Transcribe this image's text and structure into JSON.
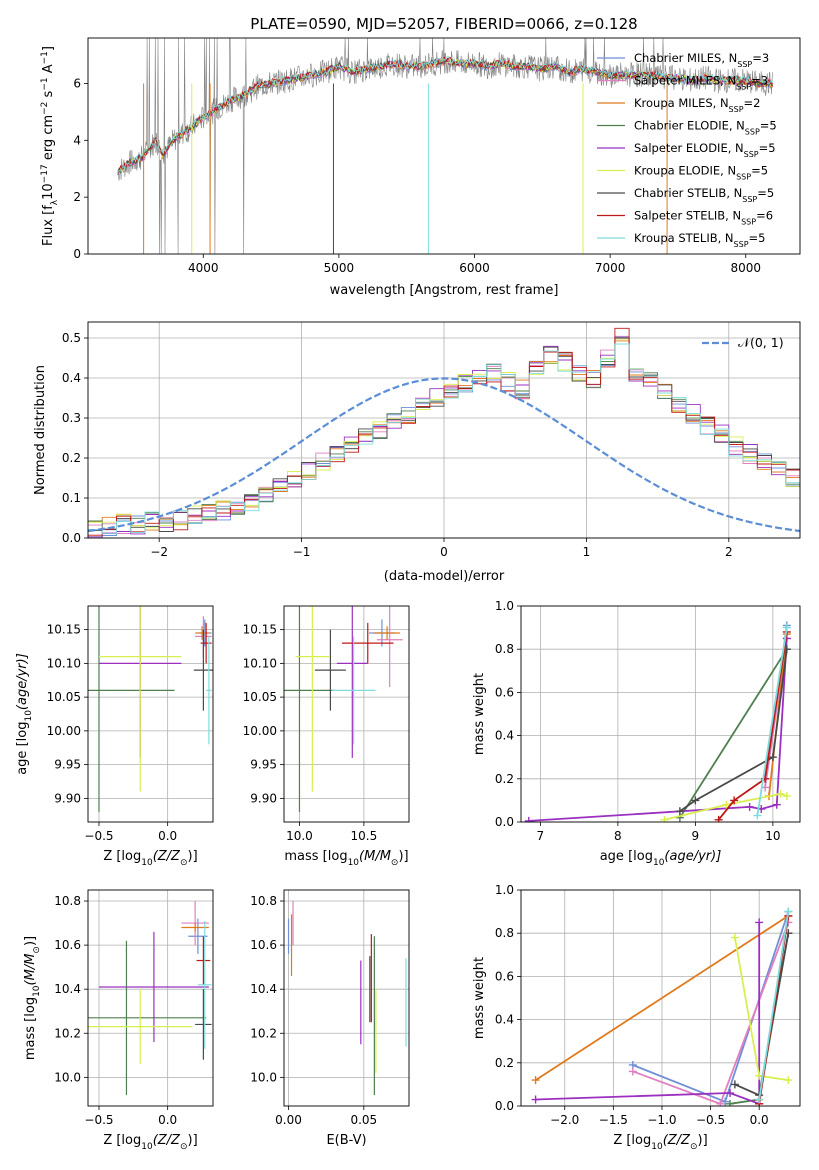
{
  "page": {
    "title": "PLATE=0590, MJD=52057, FIBERID=0066, z=0.128"
  },
  "colors": {
    "Chabrier MILES": "#6f8fd8",
    "Salpeter MILES": "#e07fbf",
    "Kroupa MILES": "#e07a1c",
    "Chabrier ELODIE": "#4f7f4f",
    "Salpeter ELODIE": "#9b30c0",
    "Kroupa ELODIE": "#d8ef4f",
    "Chabrier STELIB": "#4a4a4a",
    "Salpeter STELIB": "#c01818",
    "Kroupa STELIB": "#7fdcdc",
    "gray": "#808080"
  },
  "spectrum_legend": [
    {
      "label": "Chabrier MILES, N",
      "sub": "SSP",
      "suffix": "=3",
      "color": "#6f8fd8"
    },
    {
      "label": "Salpeter MILES, N",
      "sub": "SSP",
      "suffix": "=3",
      "color": "#e07fbf"
    },
    {
      "label": "Kroupa MILES, N",
      "sub": "SSP",
      "suffix": "=2",
      "color": "#e07a1c"
    },
    {
      "label": "Chabrier ELODIE, N",
      "sub": "SSP",
      "suffix": "=5",
      "color": "#4f7f4f"
    },
    {
      "label": "Salpeter ELODIE, N",
      "sub": "SSP",
      "suffix": "=5",
      "color": "#9b30c0"
    },
    {
      "label": "Kroupa ELODIE, N",
      "sub": "SSP",
      "suffix": "=5",
      "color": "#d8ef4f"
    },
    {
      "label": "Chabrier STELIB, N",
      "sub": "SSP",
      "suffix": "=5",
      "color": "#4a4a4a"
    },
    {
      "label": "Salpeter STELIB, N",
      "sub": "SSP",
      "suffix": "=6",
      "color": "#c01818"
    },
    {
      "label": "Kroupa STELIB, N",
      "sub": "SSP",
      "suffix": "=5",
      "color": "#7fdcdc"
    }
  ],
  "chart_data": [
    {
      "id": "spectrum",
      "type": "line",
      "title": "PLATE=0590, MJD=52057, FIBERID=0066, z=0.128",
      "xlabel": "wavelength [Angstrom, rest frame]",
      "ylabel_main": "Flux [f",
      "ylabel_sub": "λ",
      "ylabel_rest": "10",
      "ylabel_exp1": "−17",
      "ylabel_mid": " erg cm",
      "ylabel_exp2": "−2",
      "ylabel_mid2": " s",
      "ylabel_exp3": "−1",
      "ylabel_mid3": " A",
      "ylabel_exp4": "−1",
      "ylabel_end": "]",
      "xlim": [
        3150,
        8400
      ],
      "ylim": [
        0,
        7.6
      ],
      "xticks": [
        "4000",
        "5000",
        "6000",
        "7000",
        "8000"
      ],
      "xtick_vals": [
        4000,
        5000,
        6000,
        7000,
        8000
      ],
      "yticks": [
        "0",
        "2",
        "4",
        "6"
      ],
      "ytick_vals": [
        0,
        2,
        4,
        6
      ],
      "continuum": {
        "x": [
          3370,
          3450,
          3550,
          3650,
          3700,
          3800,
          3900,
          4000,
          4100,
          4200,
          4300,
          4400,
          4500,
          4600,
          4700,
          4800,
          4900,
          5000,
          5100,
          5200,
          5300,
          5400,
          5500,
          5600,
          5700,
          5800,
          5900,
          6000,
          6100,
          6200,
          6300,
          6400,
          6500,
          6600,
          6700,
          6800,
          6900,
          7000,
          7100,
          7200,
          7300,
          7400,
          7500,
          7600,
          7700,
          7800,
          7900,
          8000,
          8100,
          8200
        ],
        "y": [
          2.9,
          3.2,
          3.4,
          4.0,
          3.5,
          4.1,
          4.4,
          4.8,
          5.1,
          5.4,
          5.6,
          5.9,
          6.0,
          6.1,
          6.2,
          6.3,
          6.4,
          6.6,
          6.4,
          6.5,
          6.6,
          6.7,
          6.6,
          6.6,
          6.7,
          6.8,
          6.7,
          6.7,
          6.6,
          6.7,
          6.6,
          6.6,
          6.5,
          6.6,
          6.4,
          6.5,
          6.4,
          6.3,
          6.3,
          6.3,
          6.3,
          6.2,
          6.2,
          6.1,
          6.2,
          6.1,
          6.1,
          6.1,
          6.0,
          6.0
        ]
      }
    },
    {
      "id": "residuals",
      "type": "area",
      "xlabel": "(data-model)/error",
      "ylabel": "Normed distribution",
      "xlim": [
        -2.5,
        2.5
      ],
      "ylim": [
        0,
        0.54
      ],
      "xticks": [
        "−2",
        "−1",
        "0",
        "1",
        "2"
      ],
      "xtick_vals": [
        -2,
        -1,
        0,
        1,
        2
      ],
      "yticks": [
        "0.0",
        "0.1",
        "0.2",
        "0.3",
        "0.4",
        "0.5"
      ],
      "ytick_vals": [
        0,
        0.1,
        0.2,
        0.3,
        0.4,
        0.5
      ],
      "legend": "𝒩(0, 1)",
      "bin_width": 0.1,
      "bin_start": -2.5,
      "values": [
        0.02,
        0.03,
        0.035,
        0.035,
        0.04,
        0.04,
        0.045,
        0.06,
        0.06,
        0.07,
        0.08,
        0.09,
        0.11,
        0.13,
        0.15,
        0.17,
        0.19,
        0.21,
        0.23,
        0.25,
        0.27,
        0.29,
        0.31,
        0.33,
        0.35,
        0.37,
        0.39,
        0.41,
        0.41,
        0.39,
        0.37,
        0.42,
        0.46,
        0.44,
        0.41,
        0.4,
        0.45,
        0.5,
        0.41,
        0.39,
        0.36,
        0.33,
        0.31,
        0.28,
        0.26,
        0.23,
        0.21,
        0.19,
        0.18,
        0.15,
        0.13,
        0.11,
        0.1,
        0.09,
        0.08,
        0.07,
        0.06,
        0.05,
        0.04,
        0.04
      ]
    },
    {
      "id": "age_vs_Z",
      "type": "scatter",
      "xlabel": "Z [log",
      "xlabel_sub": "10",
      "xlabel_rest": "(Z/Z",
      "xlabel_sub2": "⊙",
      "xlabel_end": ")]",
      "ylabel": "age  [log",
      "ylabel_sub": "10",
      "ylabel_rest": "(age/yr)]",
      "xlim": [
        -0.58,
        0.33
      ],
      "ylim": [
        9.865,
        10.185
      ],
      "xticks": [
        "−0.5",
        "0.0"
      ],
      "xtick_vals": [
        -0.5,
        0.0
      ],
      "yticks": [
        "9.90",
        "9.95",
        "10.00",
        "10.05",
        "10.10",
        "10.15"
      ],
      "ytick_vals": [
        9.9,
        9.95,
        10.0,
        10.05,
        10.1,
        10.15
      ],
      "points": [
        {
          "x": 0.27,
          "y": 10.145,
          "xerr": 0.05,
          "yerr": 0.02,
          "color": "#6f8fd8"
        },
        {
          "x": 0.26,
          "y": 10.14,
          "xerr": 0.06,
          "yerr": 0.03,
          "color": "#e07fbf"
        },
        {
          "x": 0.25,
          "y": 10.145,
          "xerr": 0.05,
          "yerr": 0.01,
          "color": "#e07a1c"
        },
        {
          "x": -0.5,
          "y": 10.06,
          "xerr": 0.55,
          "yerr": 0.18,
          "color": "#4f7f4f"
        },
        {
          "x": -0.2,
          "y": 10.1,
          "xerr": 0.3,
          "yerr": 0.14,
          "color": "#9b30c0"
        },
        {
          "x": -0.2,
          "y": 10.11,
          "xerr": 0.3,
          "yerr": 0.2,
          "color": "#d8ef4f"
        },
        {
          "x": 0.26,
          "y": 10.09,
          "xerr": 0.07,
          "yerr": 0.06,
          "color": "#4a4a4a"
        },
        {
          "x": 0.28,
          "y": 10.13,
          "xerr": 0.04,
          "yerr": 0.03,
          "color": "#c01818"
        },
        {
          "x": 0.3,
          "y": 10.06,
          "xerr": 0.02,
          "yerr": 0.08,
          "color": "#7fdcdc"
        }
      ]
    },
    {
      "id": "age_vs_mass",
      "type": "scatter",
      "xlabel": "mass [log",
      "xlabel_sub": "10",
      "xlabel_rest": "(M/M",
      "xlabel_sub2": "⊙",
      "xlabel_end": ")]",
      "xlim": [
        9.88,
        10.85
      ],
      "ylim": [
        9.865,
        10.185
      ],
      "xticks": [
        "10.0",
        "10.5"
      ],
      "xtick_vals": [
        10.0,
        10.5
      ],
      "yticks": [
        "9.90",
        "9.95",
        "10.00",
        "10.05",
        "10.10",
        "10.15"
      ],
      "ytick_vals": [
        9.9,
        9.95,
        10.0,
        10.05,
        10.1,
        10.15
      ],
      "points": [
        {
          "x": 10.64,
          "y": 10.145,
          "xerr": 0.1,
          "yerr": 0.02,
          "color": "#6f8fd8"
        },
        {
          "x": 10.7,
          "y": 10.135,
          "xerr": 0.1,
          "yerr": 0.07,
          "color": "#e07fbf"
        },
        {
          "x": 10.68,
          "y": 10.145,
          "xerr": 0.1,
          "yerr": 0.01,
          "color": "#e07a1c"
        },
        {
          "x": 10.0,
          "y": 10.06,
          "xerr": 0.27,
          "yerr": 0.18,
          "color": "#4f7f4f"
        },
        {
          "x": 10.41,
          "y": 10.1,
          "xerr": 0.12,
          "yerr": 0.14,
          "color": "#9b30c0"
        },
        {
          "x": 10.1,
          "y": 10.11,
          "xerr": 0.13,
          "yerr": 0.2,
          "color": "#d8ef4f"
        },
        {
          "x": 10.24,
          "y": 10.09,
          "xerr": 0.12,
          "yerr": 0.06,
          "color": "#4a4a4a"
        },
        {
          "x": 10.53,
          "y": 10.13,
          "xerr": 0.2,
          "yerr": 0.03,
          "color": "#c01818"
        },
        {
          "x": 10.42,
          "y": 10.06,
          "xerr": 0.17,
          "yerr": 0.08,
          "color": "#7fdcdc"
        }
      ]
    },
    {
      "id": "weight_vs_age",
      "type": "line",
      "xlabel": "age  [log",
      "xlabel_sub": "10",
      "xlabel_rest": "(age/yr)]",
      "ylabel": "mass weight",
      "xlim": [
        6.75,
        10.35
      ],
      "ylim": [
        0,
        1.0
      ],
      "xticks": [
        "7",
        "8",
        "9",
        "10"
      ],
      "xtick_vals": [
        7,
        8,
        9,
        10
      ],
      "yticks": [
        "0.0",
        "0.2",
        "0.4",
        "0.6",
        "0.8",
        "1.0"
      ],
      "ytick_vals": [
        0,
        0.2,
        0.4,
        0.6,
        0.8,
        1.0
      ],
      "series": [
        {
          "color": "#6f8fd8",
          "x": [
            9.9,
            10.18
          ],
          "y": [
            0.2,
            0.91
          ]
        },
        {
          "color": "#e07fbf",
          "x": [
            9.9,
            10.18
          ],
          "y": [
            0.16,
            0.85
          ]
        },
        {
          "color": "#e07a1c",
          "x": [
            9.95,
            10.18
          ],
          "y": [
            0.12,
            0.87
          ]
        },
        {
          "color": "#4f7f4f",
          "x": [
            8.8,
            10.18
          ],
          "y": [
            0.02,
            0.8
          ]
        },
        {
          "color": "#9b30c0",
          "x": [
            6.85,
            9.7,
            9.85,
            10.05,
            10.18
          ],
          "y": [
            0.005,
            0.07,
            0.06,
            0.08,
            0.85
          ]
        },
        {
          "color": "#d8ef4f",
          "x": [
            8.6,
            9.4,
            10.1,
            10.18
          ],
          "y": [
            0.01,
            0.08,
            0.13,
            0.12
          ]
        },
        {
          "color": "#4a4a4a",
          "x": [
            8.8,
            9.0,
            10.0,
            10.18
          ],
          "y": [
            0.05,
            0.1,
            0.3,
            0.8
          ]
        },
        {
          "color": "#c01818",
          "x": [
            9.3,
            9.5,
            9.9,
            10.18
          ],
          "y": [
            0.01,
            0.1,
            0.2,
            0.88
          ]
        },
        {
          "color": "#7fdcdc",
          "x": [
            9.8,
            10.18
          ],
          "y": [
            0.03,
            0.9
          ]
        }
      ]
    },
    {
      "id": "mass_vs_Z",
      "type": "scatter",
      "xlabel": "Z [log",
      "xlabel_sub": "10",
      "xlabel_rest": "(Z/Z",
      "xlabel_sub2": "⊙",
      "xlabel_end": ")]",
      "ylabel": "mass [log",
      "ylabel_sub": "10",
      "ylabel_rest": "(M/M",
      "ylabel_sub2": "⊙",
      "ylabel_end": ")]",
      "xlim": [
        -0.58,
        0.33
      ],
      "ylim": [
        9.87,
        10.85
      ],
      "xticks": [
        "−0.5",
        "0.0"
      ],
      "xtick_vals": [
        -0.5,
        0.0
      ],
      "yticks": [
        "10.0",
        "10.2",
        "10.4",
        "10.6",
        "10.8"
      ],
      "ytick_vals": [
        10.0,
        10.2,
        10.4,
        10.6,
        10.8
      ],
      "points": [
        {
          "x": 0.22,
          "y": 10.64,
          "xerr": 0.07,
          "yerr": 0.08,
          "color": "#6f8fd8"
        },
        {
          "x": 0.2,
          "y": 10.7,
          "xerr": 0.1,
          "yerr": 0.1,
          "color": "#e07fbf"
        },
        {
          "x": 0.2,
          "y": 10.68,
          "xerr": 0.1,
          "yerr": 0.02,
          "color": "#e07a1c"
        },
        {
          "x": -0.3,
          "y": 10.27,
          "xerr": 0.58,
          "yerr": 0.35,
          "color": "#4f7f4f"
        },
        {
          "x": -0.1,
          "y": 10.41,
          "xerr": 0.4,
          "yerr": 0.25,
          "color": "#9b30c0"
        },
        {
          "x": -0.2,
          "y": 10.23,
          "xerr": 0.38,
          "yerr": 0.17,
          "color": "#d8ef4f"
        },
        {
          "x": 0.26,
          "y": 10.24,
          "xerr": 0.06,
          "yerr": 0.16,
          "color": "#4a4a4a"
        },
        {
          "x": 0.26,
          "y": 10.53,
          "xerr": 0.05,
          "yerr": 0.11,
          "color": "#c01818"
        },
        {
          "x": 0.27,
          "y": 10.42,
          "xerr": 0.05,
          "yerr": 0.29,
          "color": "#7fdcdc"
        }
      ]
    },
    {
      "id": "mass_vs_ebv",
      "type": "scatter",
      "xlabel": "E(B-V)",
      "xlim": [
        -0.003,
        0.08
      ],
      "ylim": [
        9.87,
        10.85
      ],
      "xticks": [
        "0.00",
        "0.05"
      ],
      "xtick_vals": [
        0.0,
        0.05
      ],
      "yticks": [
        "10.0",
        "10.2",
        "10.4",
        "10.6",
        "10.8"
      ],
      "ytick_vals": [
        10.0,
        10.2,
        10.4,
        10.6,
        10.8
      ],
      "points": [
        {
          "x": 0.0,
          "y": 10.64,
          "xerr": 0,
          "yerr": 0.08,
          "color": "#6f8fd8"
        },
        {
          "x": 0.003,
          "y": 10.7,
          "xerr": 0,
          "yerr": 0.1,
          "color": "#e07fbf"
        },
        {
          "x": 0.002,
          "y": 10.6,
          "xerr": 0,
          "yerr": 0.14,
          "color": "#e07a1c"
        },
        {
          "x": 0.057,
          "y": 10.28,
          "xerr": 0,
          "yerr": 0.36,
          "color": "#4f7f4f"
        },
        {
          "x": 0.048,
          "y": 10.34,
          "xerr": 0,
          "yerr": 0.19,
          "color": "#9b30c0"
        },
        {
          "x": 0.058,
          "y": 10.21,
          "xerr": 0,
          "yerr": 0.19,
          "color": "#d8ef4f"
        },
        {
          "x": 0.054,
          "y": 10.4,
          "xerr": 0,
          "yerr": 0.15,
          "color": "#4a4a4a"
        },
        {
          "x": 0.055,
          "y": 10.45,
          "xerr": 0,
          "yerr": 0.2,
          "color": "#c01818"
        },
        {
          "x": 0.078,
          "y": 10.34,
          "xerr": 0,
          "yerr": 0.2,
          "color": "#7fdcdc"
        }
      ]
    },
    {
      "id": "weight_vs_Z",
      "type": "line",
      "xlabel": "Z [log",
      "xlabel_sub": "10",
      "xlabel_rest": "(Z/Z",
      "xlabel_sub2": "⊙",
      "xlabel_end": ")]",
      "ylabel": "mass weight",
      "xlim": [
        -2.45,
        0.42
      ],
      "ylim": [
        0,
        1.0
      ],
      "xticks": [
        "−2.0",
        "−1.5",
        "−1.0",
        "−0.5",
        "0.0"
      ],
      "xtick_vals": [
        -2.0,
        -1.5,
        -1.0,
        -0.5,
        0.0
      ],
      "yticks": [
        "0.0",
        "0.2",
        "0.4",
        "0.6",
        "0.8",
        "1.0"
      ],
      "ytick_vals": [
        0,
        0.2,
        0.4,
        0.6,
        0.8,
        1.0
      ],
      "series": [
        {
          "color": "#6f8fd8",
          "x": [
            -1.3,
            -0.35,
            0.3
          ],
          "y": [
            0.19,
            0.02,
            0.9
          ]
        },
        {
          "color": "#e07fbf",
          "x": [
            -1.3,
            -0.4,
            0.3
          ],
          "y": [
            0.16,
            0.01,
            0.85
          ]
        },
        {
          "color": "#e07a1c",
          "x": [
            -2.3,
            0.3
          ],
          "y": [
            0.12,
            0.88
          ]
        },
        {
          "color": "#4f7f4f",
          "x": [
            -0.3,
            0.0,
            0.3
          ],
          "y": [
            0.01,
            0.03,
            0.8
          ]
        },
        {
          "color": "#9b30c0",
          "x": [
            -2.3,
            -0.3,
            0.0,
            0.0
          ],
          "y": [
            0.03,
            0.06,
            0.01,
            0.85
          ]
        },
        {
          "color": "#d8ef4f",
          "x": [
            -0.25,
            0.0,
            0.3
          ],
          "y": [
            0.78,
            0.14,
            0.12
          ]
        },
        {
          "color": "#4a4a4a",
          "x": [
            -0.25,
            0.0,
            0.3
          ],
          "y": [
            0.1,
            0.05,
            0.8
          ]
        },
        {
          "color": "#c01818",
          "x": [
            0.0,
            0.3
          ],
          "y": [
            0.01,
            0.88
          ]
        },
        {
          "color": "#7fdcdc",
          "x": [
            0.0,
            0.3
          ],
          "y": [
            0.03,
            0.9
          ]
        }
      ]
    }
  ]
}
